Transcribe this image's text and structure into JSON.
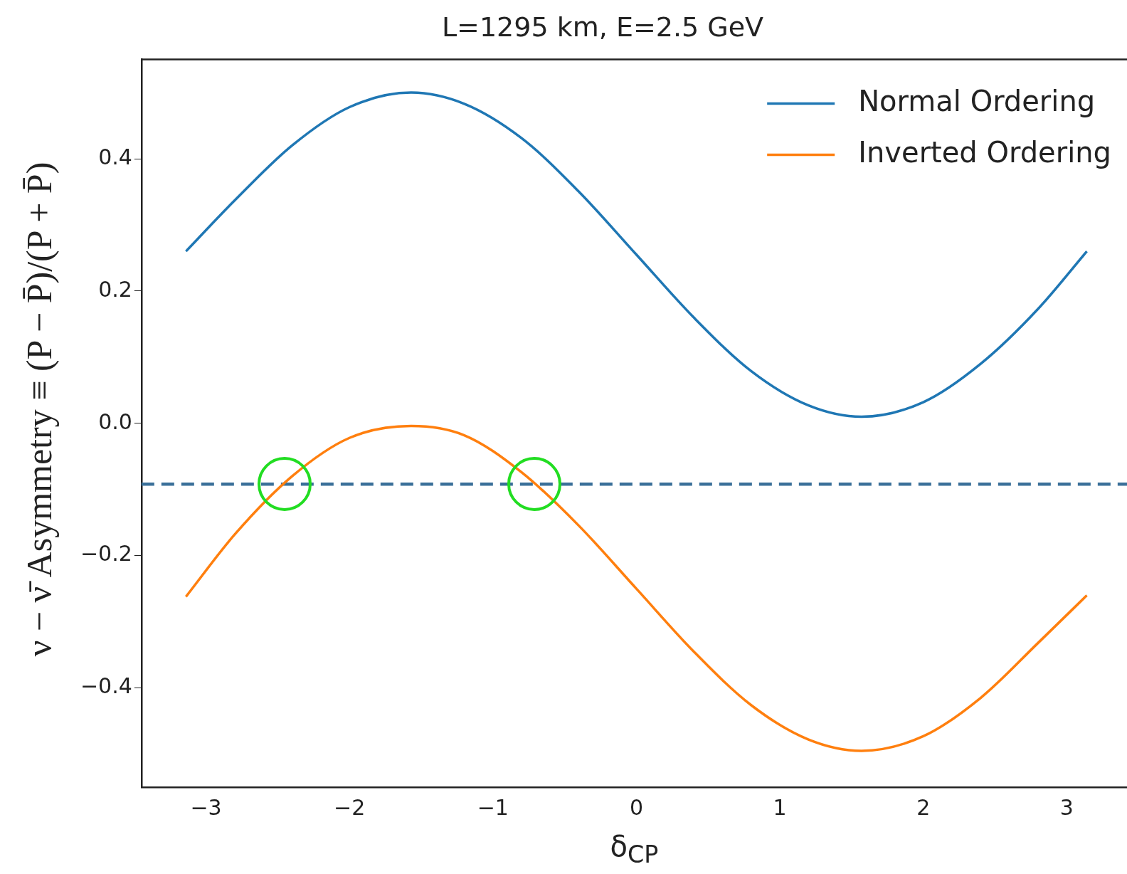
{
  "chart_data": {
    "type": "line",
    "title": "L=1295 km, E=2.5 GeV",
    "xlabel": "δ$_{CP}$",
    "ylabel": "ν − ν̄ Asymmetry ≡ (P − P̄)/(P + P̄)",
    "x": [
      -3.14,
      -2.8,
      -2.4,
      -2.0,
      -1.57,
      -1.2,
      -0.8,
      -0.4,
      0,
      0.4,
      0.8,
      1.2,
      1.57,
      2.0,
      2.4,
      2.8,
      3.14
    ],
    "series": [
      {
        "name": "Normal Ordering",
        "color": "#1f77b4",
        "values": [
          0.26,
          0.337,
          0.42,
          0.478,
          0.5,
          0.483,
          0.431,
          0.35,
          0.255,
          0.16,
          0.079,
          0.027,
          0.01,
          0.032,
          0.09,
          0.173,
          0.26
        ]
      },
      {
        "name": "Inverted Ordering",
        "color": "#ff7f0e",
        "values": [
          -0.262,
          -0.168,
          -0.08,
          -0.022,
          -0.004,
          -0.018,
          -0.074,
          -0.155,
          -0.25,
          -0.345,
          -0.426,
          -0.478,
          -0.495,
          -0.473,
          -0.415,
          -0.332,
          -0.26
        ]
      }
    ],
    "xlim": [
      -3.45,
      3.42
    ],
    "ylim": [
      -0.55,
      0.55
    ],
    "xticks": [
      {
        "value": -3,
        "label": "−3"
      },
      {
        "value": -2,
        "label": "−2"
      },
      {
        "value": -1,
        "label": "−1"
      },
      0,
      1,
      2,
      3
    ],
    "yticks": [
      {
        "value": -0.4,
        "label": "−0.4"
      },
      {
        "value": -0.2,
        "label": "−0.2"
      },
      {
        "value": 0,
        "label": "0.0"
      },
      0.2,
      0.4
    ],
    "ref_lines": [
      {
        "axis": "y",
        "value": -0.092,
        "color": "#3a7099",
        "line_style": "dashed"
      }
    ],
    "legend": "top right",
    "grid": false,
    "marker": "none",
    "line_style": "solid"
  }
}
